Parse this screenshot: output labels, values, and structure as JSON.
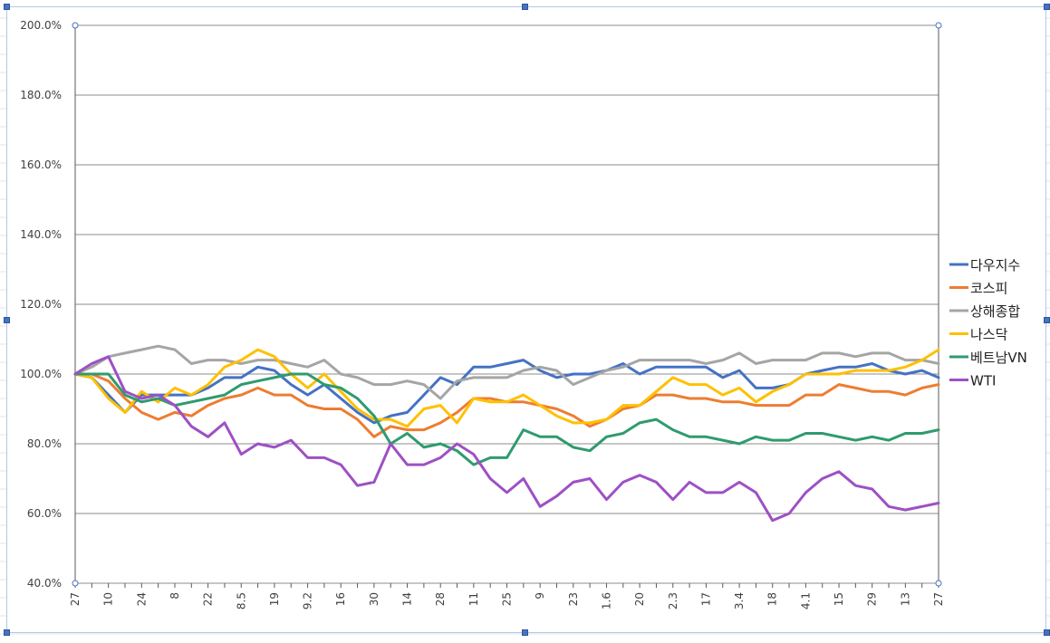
{
  "colors": {
    "grid": "#8c8c8c",
    "axis": "#595959",
    "frame": "#b4c6e7",
    "handle": "#4472c4"
  },
  "chart_data": {
    "type": "line",
    "title": "",
    "xlabel": "",
    "ylabel": "",
    "ylim": [
      0.4,
      2.0
    ],
    "y_tick_format": "percent",
    "y_ticks": [
      0.4,
      0.6,
      0.8,
      1.0,
      1.2,
      1.4,
      1.6,
      1.8,
      2.0
    ],
    "y_tick_labels": [
      "40.0%",
      "60.0%",
      "80.0%",
      "100.0%",
      "120.0%",
      "140.0%",
      "160.0%",
      "180.0%",
      "200.0%"
    ],
    "grid": "horizontal",
    "legend": "right",
    "x_labels": [
      "27",
      "",
      "10",
      "",
      "24",
      "",
      "8",
      "",
      "22",
      "",
      "8.5",
      "",
      "19",
      "",
      "9.2",
      "",
      "16",
      "",
      "30",
      "",
      "14",
      "",
      "28",
      "",
      "11",
      "",
      "25",
      "",
      "9",
      "",
      "23",
      "",
      "1.6",
      "",
      "20",
      "",
      "2.3",
      "",
      "17",
      "",
      "3.4",
      "",
      "18",
      "",
      "4.1",
      "",
      "15",
      "",
      "29",
      "",
      "13",
      "",
      "27"
    ],
    "series": [
      {
        "name": "다우지수",
        "color": "#4472c4",
        "values": [
          1.0,
          0.99,
          0.94,
          0.89,
          0.94,
          0.94,
          0.94,
          0.94,
          0.96,
          0.99,
          0.99,
          1.02,
          1.01,
          0.97,
          0.94,
          0.97,
          0.93,
          0.89,
          0.86,
          0.88,
          0.89,
          0.94,
          0.99,
          0.97,
          1.02,
          1.02,
          1.03,
          1.04,
          1.01,
          0.99,
          1.0,
          1.0,
          1.01,
          1.03,
          1.0,
          1.02,
          1.02,
          1.02,
          1.02,
          0.99,
          1.01,
          0.96,
          0.96,
          0.97,
          1.0,
          1.01,
          1.02,
          1.02,
          1.03,
          1.01,
          1.0,
          1.01,
          0.99
        ]
      },
      {
        "name": "코스피",
        "color": "#ed7d31",
        "values": [
          1.0,
          1.0,
          0.98,
          0.93,
          0.89,
          0.87,
          0.89,
          0.88,
          0.91,
          0.93,
          0.94,
          0.96,
          0.94,
          0.94,
          0.91,
          0.9,
          0.9,
          0.87,
          0.82,
          0.85,
          0.84,
          0.84,
          0.86,
          0.89,
          0.93,
          0.93,
          0.92,
          0.92,
          0.91,
          0.9,
          0.88,
          0.85,
          0.87,
          0.9,
          0.91,
          0.94,
          0.94,
          0.93,
          0.93,
          0.92,
          0.92,
          0.91,
          0.91,
          0.91,
          0.94,
          0.94,
          0.97,
          0.96,
          0.95,
          0.95,
          0.94,
          0.96,
          0.97
        ]
      },
      {
        "name": "상해종합",
        "color": "#a5a5a5",
        "values": [
          1.0,
          1.02,
          1.05,
          1.06,
          1.07,
          1.08,
          1.07,
          1.03,
          1.04,
          1.04,
          1.03,
          1.04,
          1.04,
          1.03,
          1.02,
          1.04,
          1.0,
          0.99,
          0.97,
          0.97,
          0.98,
          0.97,
          0.93,
          0.98,
          0.99,
          0.99,
          0.99,
          1.01,
          1.02,
          1.01,
          0.97,
          0.99,
          1.01,
          1.02,
          1.04,
          1.04,
          1.04,
          1.04,
          1.03,
          1.04,
          1.06,
          1.03,
          1.04,
          1.04,
          1.04,
          1.06,
          1.06,
          1.05,
          1.06,
          1.06,
          1.04,
          1.04,
          1.03
        ]
      },
      {
        "name": "나스닥",
        "color": "#ffc000",
        "values": [
          1.0,
          0.99,
          0.93,
          0.89,
          0.95,
          0.92,
          0.96,
          0.94,
          0.97,
          1.02,
          1.04,
          1.07,
          1.05,
          1.0,
          0.96,
          1.0,
          0.95,
          0.9,
          0.87,
          0.87,
          0.85,
          0.9,
          0.91,
          0.86,
          0.93,
          0.92,
          0.92,
          0.94,
          0.91,
          0.88,
          0.86,
          0.86,
          0.87,
          0.91,
          0.91,
          0.95,
          0.99,
          0.97,
          0.97,
          0.94,
          0.96,
          0.92,
          0.95,
          0.97,
          1.0,
          1.0,
          1.0,
          1.01,
          1.01,
          1.01,
          1.02,
          1.04,
          1.07
        ]
      },
      {
        "name": "베트남VN",
        "color": "#2e9b6e",
        "values": [
          1.0,
          1.0,
          1.0,
          0.94,
          0.92,
          0.93,
          0.91,
          0.92,
          0.93,
          0.94,
          0.97,
          0.98,
          0.99,
          1.0,
          1.0,
          0.97,
          0.96,
          0.93,
          0.88,
          0.8,
          0.83,
          0.79,
          0.8,
          0.78,
          0.74,
          0.76,
          0.76,
          0.84,
          0.82,
          0.82,
          0.79,
          0.78,
          0.82,
          0.83,
          0.86,
          0.87,
          0.84,
          0.82,
          0.82,
          0.81,
          0.8,
          0.82,
          0.81,
          0.81,
          0.83,
          0.83,
          0.82,
          0.81,
          0.82,
          0.81,
          0.83,
          0.83,
          0.84
        ]
      },
      {
        "name": "WTI",
        "color": "#9e50c4",
        "values": [
          1.0,
          1.03,
          1.05,
          0.95,
          0.93,
          0.94,
          0.91,
          0.85,
          0.82,
          0.86,
          0.77,
          0.8,
          0.79,
          0.81,
          0.76,
          0.76,
          0.74,
          0.68,
          0.69,
          0.8,
          0.74,
          0.74,
          0.76,
          0.8,
          0.77,
          0.7,
          0.66,
          0.7,
          0.62,
          0.65,
          0.69,
          0.7,
          0.64,
          0.69,
          0.71,
          0.69,
          0.64,
          0.69,
          0.66,
          0.66,
          0.69,
          0.66,
          0.58,
          0.6,
          0.66,
          0.7,
          0.72,
          0.68,
          0.67,
          0.62,
          0.61,
          0.62,
          0.63
        ]
      }
    ]
  }
}
